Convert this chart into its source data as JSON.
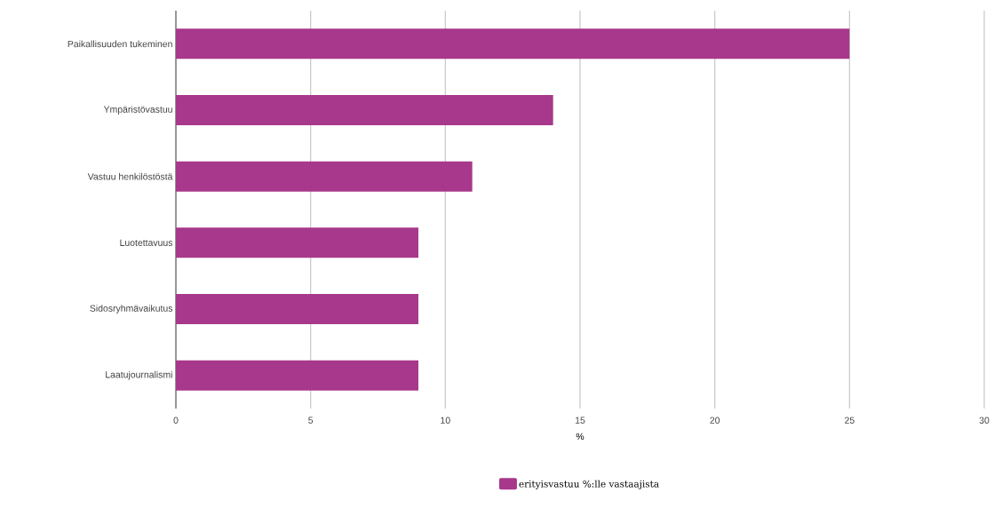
{
  "chart_data": {
    "type": "bar",
    "orientation": "horizontal",
    "xlabel": "%",
    "categories": [
      "Paikallisuuden tukeminen",
      "Ympäristövastuu",
      "Vastuu henkilöstöstä",
      "Luotettavuus",
      "Sidosryhmävaikutus",
      "Laatujournalismi"
    ],
    "series": [
      {
        "name": "erityisvastuu %:lle vastaajista",
        "color": "#a8388b",
        "values": [
          25,
          14,
          11,
          9,
          9,
          9
        ]
      }
    ],
    "xlim": [
      0,
      30
    ],
    "xticks": [
      0,
      5,
      10,
      15,
      20,
      25,
      30
    ],
    "grid": "x",
    "legend": "bottom"
  }
}
